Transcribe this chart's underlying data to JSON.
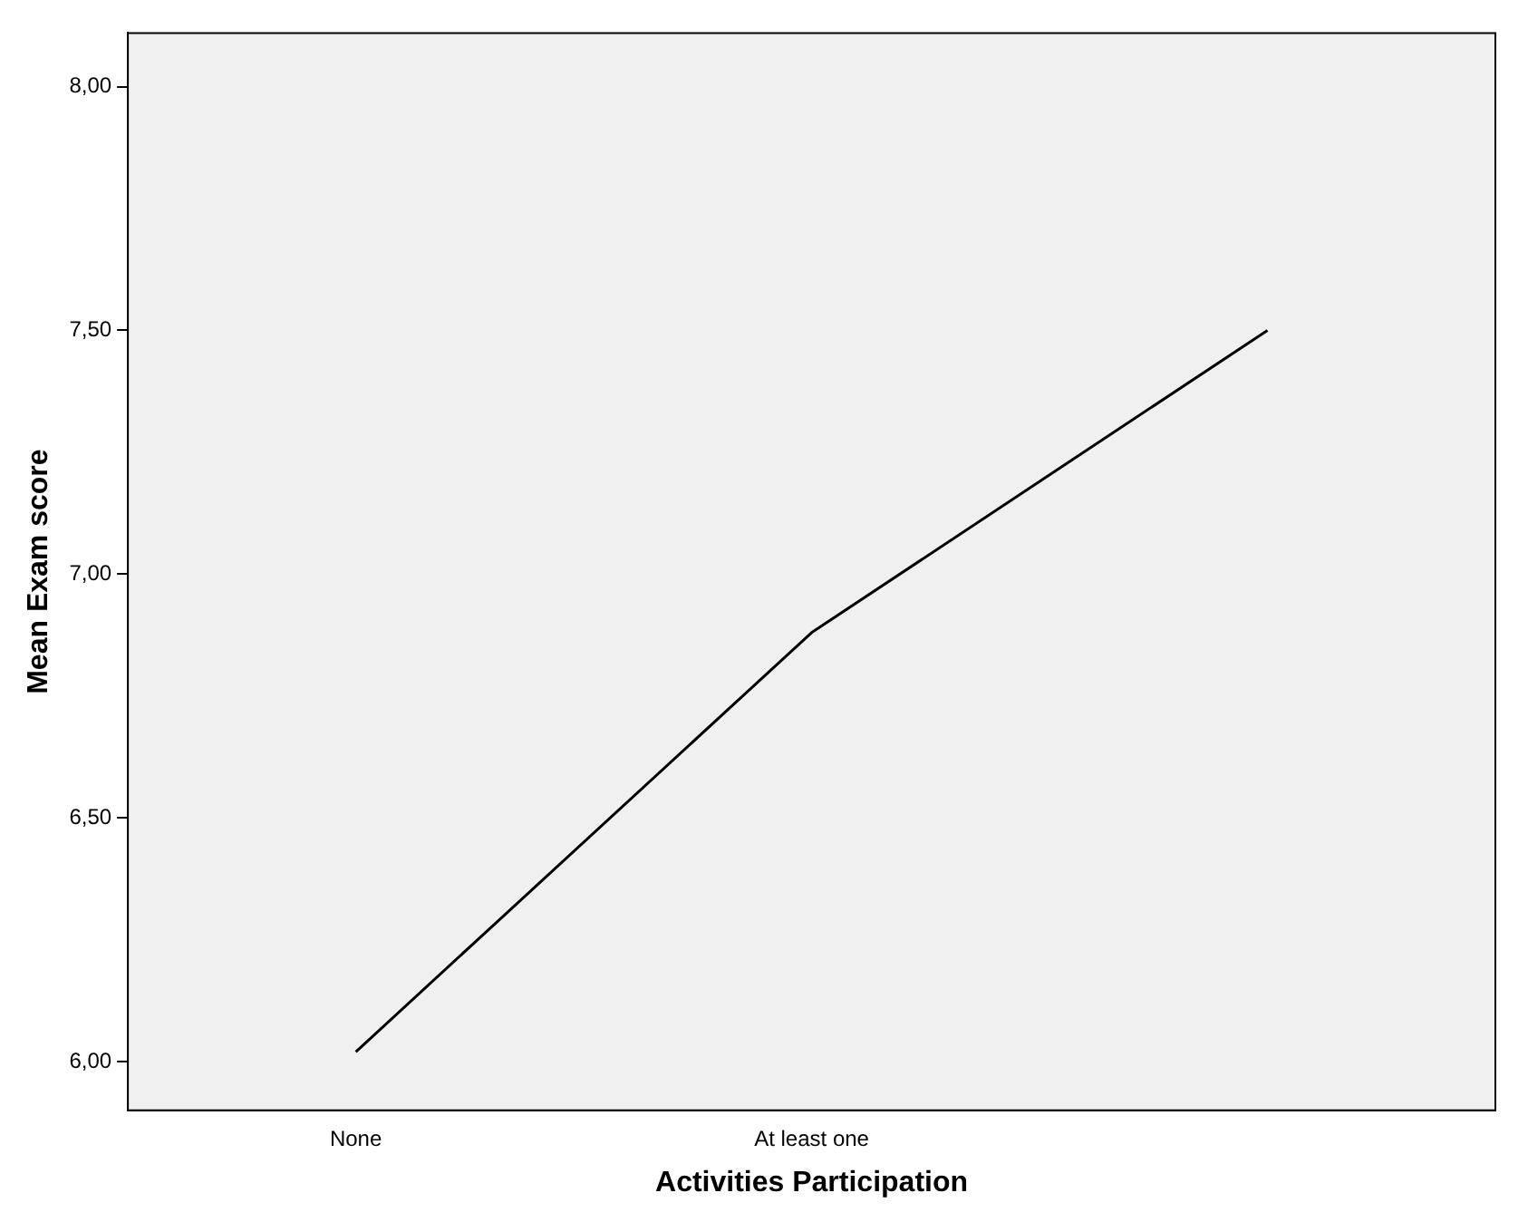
{
  "chart_data": {
    "type": "line",
    "xlabel": "Activities Participation",
    "ylabel": "Mean Exam score",
    "categories": [
      "None",
      "At least one",
      null
    ],
    "series": [
      {
        "color": "#000000",
        "values": [
          6.02,
          6.88,
          7.5
        ]
      }
    ],
    "ylim": [
      5.9,
      8.11
    ],
    "yticks": [
      {
        "value": 6,
        "label": "6,00"
      },
      {
        "value": 6.5,
        "label": "6,50"
      },
      {
        "value": 7,
        "label": "7,00"
      },
      {
        "value": 7.5,
        "label": "7,50"
      },
      {
        "value": 8,
        "label": "8,00"
      }
    ],
    "grid": false,
    "legend": false,
    "marker": "none",
    "line_style": "solid"
  }
}
